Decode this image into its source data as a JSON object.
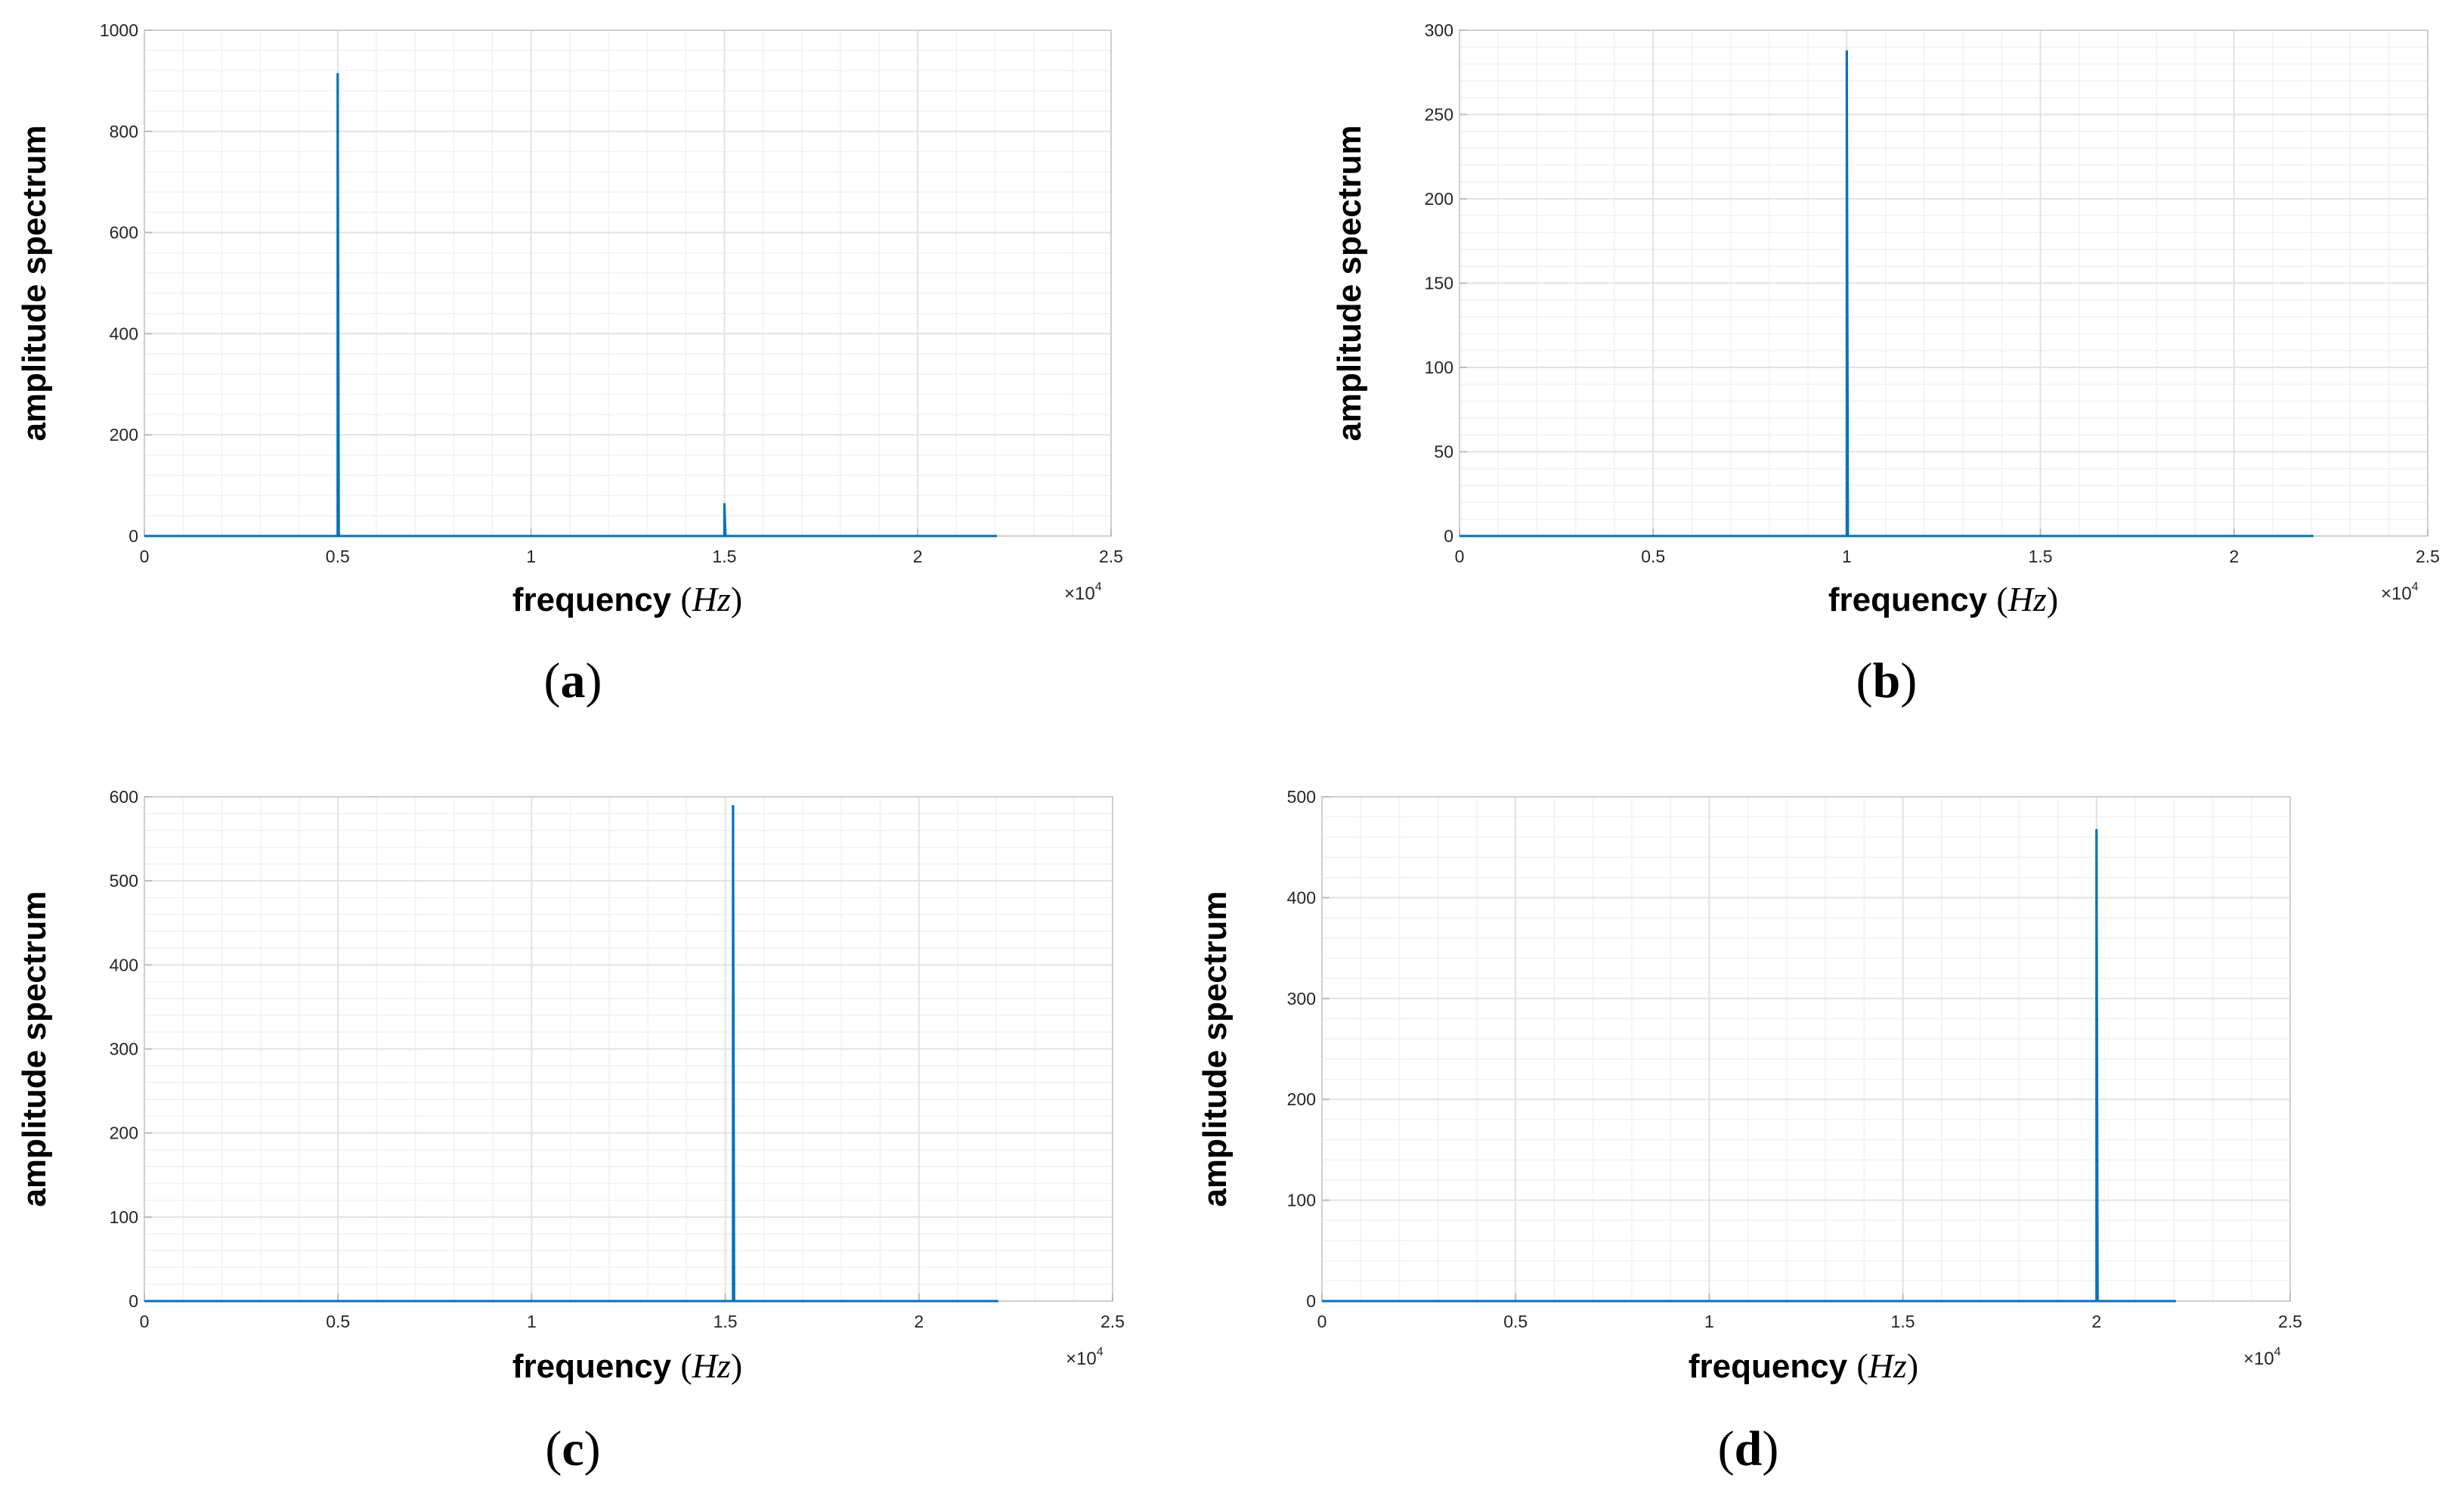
{
  "chart_data": [
    {
      "type": "line",
      "panel_label": "a",
      "xlabel": "frequency",
      "xunit": "Hz",
      "ylabel": "amplitude spectrum",
      "xlim": [
        0,
        25000
      ],
      "ylim": [
        0,
        1000
      ],
      "x_ticks": [
        0,
        5000,
        10000,
        15000,
        20000,
        25000
      ],
      "x_tick_labels": [
        "0",
        "0.5",
        "1",
        "1.5",
        "2",
        "2.5"
      ],
      "y_ticks": [
        0,
        200,
        400,
        600,
        800,
        1000
      ],
      "y_tick_labels": [
        "0",
        "200",
        "400",
        "600",
        "800",
        "1000"
      ],
      "x_multiplier": "×10",
      "x_multiplier_exp": "4",
      "grid": true,
      "data_x_range": [
        0,
        22050
      ],
      "peaks": [
        {
          "x": 5000,
          "y": 915
        },
        {
          "x": 15000,
          "y": 65
        }
      ]
    },
    {
      "type": "line",
      "panel_label": "b",
      "xlabel": "frequency",
      "xunit": "Hz",
      "ylabel": "amplitude spectrum",
      "xlim": [
        0,
        25000
      ],
      "ylim": [
        0,
        300
      ],
      "x_ticks": [
        0,
        5000,
        10000,
        15000,
        20000,
        25000
      ],
      "x_tick_labels": [
        "0",
        "0.5",
        "1",
        "1.5",
        "2",
        "2.5"
      ],
      "y_ticks": [
        0,
        50,
        100,
        150,
        200,
        250,
        300
      ],
      "y_tick_labels": [
        "0",
        "50",
        "100",
        "150",
        "200",
        "250",
        "300"
      ],
      "x_multiplier": "×10",
      "x_multiplier_exp": "4",
      "grid": true,
      "data_x_range": [
        0,
        22050
      ],
      "peaks": [
        {
          "x": 10000,
          "y": 288
        }
      ]
    },
    {
      "type": "line",
      "panel_label": "c",
      "xlabel": "frequency",
      "xunit": "Hz",
      "ylabel": "amplitude spectrum",
      "xlim": [
        0,
        25000
      ],
      "ylim": [
        0,
        600
      ],
      "x_ticks": [
        0,
        5000,
        10000,
        15000,
        20000,
        25000
      ],
      "x_tick_labels": [
        "0",
        "0.5",
        "1",
        "1.5",
        "2",
        "2.5"
      ],
      "y_ticks": [
        0,
        100,
        200,
        300,
        400,
        500,
        600
      ],
      "y_tick_labels": [
        "0",
        "100",
        "200",
        "300",
        "400",
        "500",
        "600"
      ],
      "x_multiplier": "×10",
      "x_multiplier_exp": "4",
      "grid": true,
      "data_x_range": [
        0,
        22050
      ],
      "peaks": [
        {
          "x": 15200,
          "y": 590
        }
      ]
    },
    {
      "type": "line",
      "panel_label": "d",
      "xlabel": "frequency",
      "xunit": "Hz",
      "ylabel": "amplitude spectrum",
      "xlim": [
        0,
        25000
      ],
      "ylim": [
        0,
        500
      ],
      "x_ticks": [
        0,
        5000,
        10000,
        15000,
        20000,
        25000
      ],
      "x_tick_labels": [
        "0",
        "0.5",
        "1",
        "1.5",
        "2",
        "2.5"
      ],
      "y_ticks": [
        0,
        100,
        200,
        300,
        400,
        500
      ],
      "y_tick_labels": [
        "0",
        "100",
        "200",
        "300",
        "400",
        "500"
      ],
      "x_multiplier": "×10",
      "x_multiplier_exp": "4",
      "grid": true,
      "data_x_range": [
        0,
        22050
      ],
      "peaks": [
        {
          "x": 20000,
          "y": 468
        }
      ]
    }
  ],
  "colors": {
    "series": "#0072BD",
    "axes_edge": "#d0d0d0",
    "major_grid": "#e2e2e2",
    "minor_grid": "#f1f1f1",
    "tick_text": "#262626"
  }
}
